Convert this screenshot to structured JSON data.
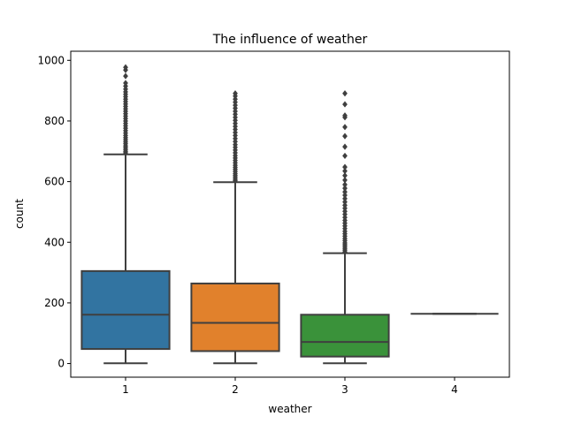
{
  "chart_data": {
    "type": "box",
    "title": "The influence of weather",
    "xlabel": "weather",
    "ylabel": "count",
    "categories": [
      "1",
      "2",
      "3",
      "4"
    ],
    "ylim": [
      -45,
      1030
    ],
    "yticks": [
      0,
      200,
      400,
      600,
      800,
      1000
    ],
    "grid": false,
    "boxes": [
      {
        "category": "1",
        "color": "#3274a1",
        "whisker_low": 1,
        "q1": 48,
        "median": 161,
        "q3": 305,
        "whisker_high": 690,
        "fliers": [
          695,
          700,
          706,
          712,
          718,
          725,
          731,
          738,
          745,
          752,
          760,
          768,
          776,
          784,
          792,
          800,
          808,
          816,
          824,
          832,
          840,
          848,
          856,
          864,
          872,
          880,
          888,
          896,
          905,
          915,
          925,
          948,
          968,
          977
        ]
      },
      {
        "category": "2",
        "color": "#e1812c",
        "whisker_low": 1,
        "q1": 41,
        "median": 134,
        "q3": 264,
        "whisker_high": 598,
        "fliers": [
          603,
          608,
          614,
          620,
          626,
          633,
          640,
          647,
          654,
          662,
          670,
          678,
          686,
          695,
          704,
          713,
          722,
          732,
          742,
          752,
          762,
          772,
          782,
          792,
          802,
          812,
          822,
          832,
          842,
          852,
          862,
          872,
          882,
          891
        ]
      },
      {
        "category": "3",
        "color": "#3a923a",
        "whisker_low": 1,
        "q1": 23,
        "median": 71,
        "q3": 161,
        "whisker_high": 364,
        "fliers": [
          368,
          374,
          380,
          386,
          392,
          398,
          405,
          412,
          420,
          428,
          436,
          445,
          454,
          463,
          472,
          482,
          492,
          502,
          512,
          522,
          533,
          544,
          555,
          566,
          578,
          590,
          605,
          620,
          635,
          648,
          685,
          715,
          750,
          780,
          812,
          818,
          855,
          891
        ]
      },
      {
        "category": "4",
        "color": "#c03d3e",
        "whisker_low": 164,
        "q1": 164,
        "median": 164,
        "q3": 164,
        "whisker_high": 164,
        "fliers": []
      }
    ]
  }
}
